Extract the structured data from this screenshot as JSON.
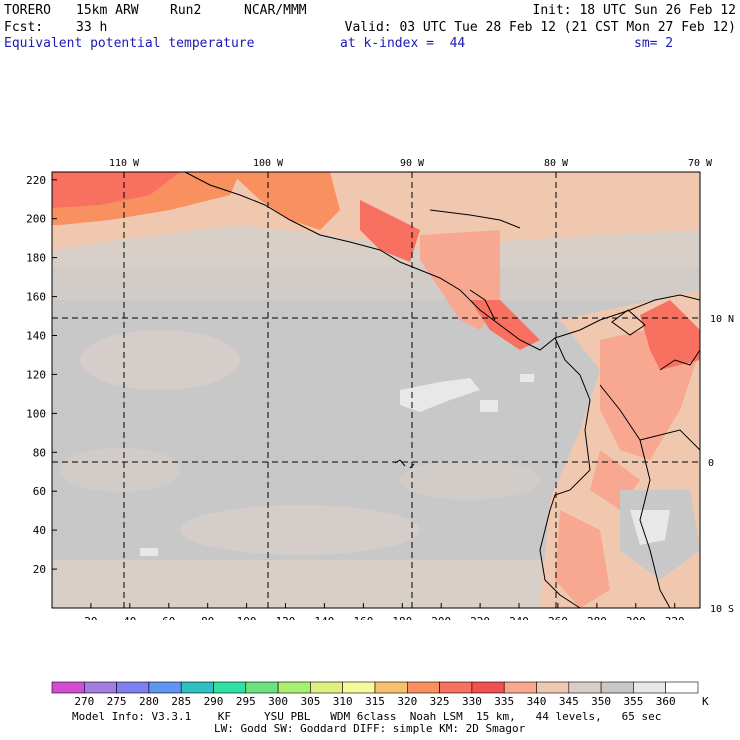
{
  "header": {
    "model": "TORERO",
    "resolution": "15km ARW",
    "run": "Run2",
    "org": "NCAR/MMM",
    "init": "Init: 18 UTC Sun 26 Feb 12",
    "fcst_label": "Fcst:",
    "fcst_value": "33 h",
    "valid": "Valid: 03 UTC Tue 28 Feb 12 (21 CST Mon 27 Feb 12)",
    "field": "Equivalent potential temperature",
    "level": "at k-index =  44",
    "smoothing": "sm= 2"
  },
  "map": {
    "lon_labels": [
      "110 W",
      "100 W",
      "90 W",
      "80 W",
      "70 W"
    ],
    "lat_labels": [
      "10 N",
      "0",
      "10 S"
    ],
    "x_ticks": [
      "20",
      "40",
      "60",
      "80",
      "100",
      "120",
      "140",
      "160",
      "180",
      "200",
      "220",
      "240",
      "260",
      "280",
      "300",
      "320"
    ],
    "y_ticks": [
      "20",
      "40",
      "60",
      "80",
      "100",
      "120",
      "140",
      "160",
      "180",
      "200",
      "220"
    ]
  },
  "colorbar": {
    "values": [
      "270",
      "275",
      "280",
      "285",
      "290",
      "295",
      "300",
      "305",
      "310",
      "315",
      "320",
      "325",
      "330",
      "335",
      "340",
      "345",
      "350",
      "355",
      "360"
    ],
    "unit": "K",
    "colors": [
      "#d04fd0",
      "#a47de0",
      "#7f7ff0",
      "#5f97f0",
      "#2fc0c0",
      "#2fe0a0",
      "#6fe07f",
      "#a8f070",
      "#e0f080",
      "#f8f8a0",
      "#f8c070",
      "#f89060",
      "#f87060",
      "#f05050",
      "#f8a890",
      "#f0c8b0",
      "#d9cfc9",
      "#c8c8c8",
      "#e8e8e8",
      "#ffffff"
    ]
  },
  "footer": {
    "line1": "Model Info: V3.3.1    KF     YSU PBL   WDM 6class  Noah LSM  15 km,   44 levels,   65 sec",
    "line2": "LW: Godd SW: Goddard DIFF: simple KM: 2D Smagor"
  }
}
